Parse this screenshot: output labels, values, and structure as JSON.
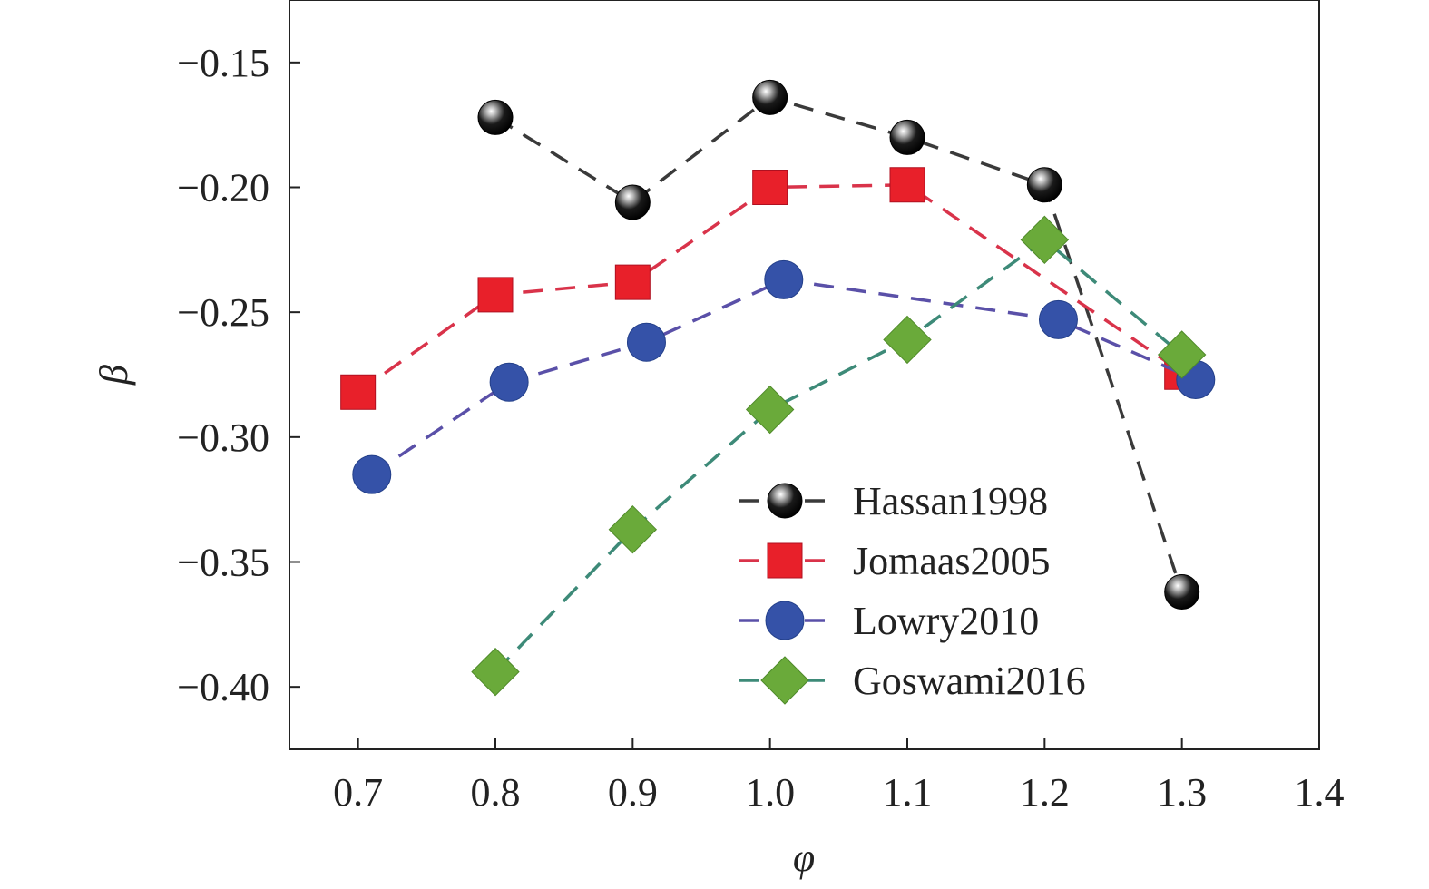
{
  "chart_data": {
    "type": "line",
    "xlabel": "φ",
    "ylabel": "β",
    "xlim": [
      0.65,
      1.4
    ],
    "ylim": [
      -0.425,
      -0.125
    ],
    "x_ticks": [
      {
        "value": 0.7,
        "label": "0.7"
      },
      {
        "value": 0.8,
        "label": "0.8"
      },
      {
        "value": 0.9,
        "label": "0.9"
      },
      {
        "value": 1.0,
        "label": "1.0"
      },
      {
        "value": 1.1,
        "label": "1.1"
      },
      {
        "value": 1.2,
        "label": "1.2"
      },
      {
        "value": 1.3,
        "label": "1.3"
      },
      {
        "value": 1.4,
        "label": "1.4"
      }
    ],
    "y_ticks": [
      {
        "value": -0.15,
        "label": "−0.15"
      },
      {
        "value": -0.2,
        "label": "−0.20"
      },
      {
        "value": -0.25,
        "label": "−0.25"
      },
      {
        "value": -0.3,
        "label": "−0.30"
      },
      {
        "value": -0.35,
        "label": "−0.35"
      },
      {
        "value": -0.4,
        "label": "−0.40"
      }
    ],
    "grid": false,
    "legend_position": "bottom-right",
    "series": [
      {
        "name": "Hassan1998",
        "marker": "sphere",
        "color": "#111111",
        "line_color": "#3a3a3a",
        "points": [
          [
            0.8,
            -0.172
          ],
          [
            0.9,
            -0.206
          ],
          [
            1.0,
            -0.164
          ],
          [
            1.1,
            -0.18
          ],
          [
            1.2,
            -0.199
          ],
          [
            1.3,
            -0.362
          ]
        ]
      },
      {
        "name": "Jomaas2005",
        "marker": "square",
        "color": "#e8202a",
        "line_color": "#d9334a",
        "points": [
          [
            0.7,
            -0.282
          ],
          [
            0.8,
            -0.243
          ],
          [
            0.9,
            -0.238
          ],
          [
            1.0,
            -0.2
          ],
          [
            1.1,
            -0.199
          ],
          [
            1.3,
            -0.274
          ]
        ]
      },
      {
        "name": "Lowry2010",
        "marker": "circle",
        "color": "#3552a8",
        "line_color": "#5a50a8",
        "points": [
          [
            0.71,
            -0.315
          ],
          [
            0.81,
            -0.278
          ],
          [
            0.91,
            -0.262
          ],
          [
            1.01,
            -0.237
          ],
          [
            1.21,
            -0.253
          ],
          [
            1.31,
            -0.277
          ]
        ]
      },
      {
        "name": "Goswami2016",
        "marker": "diamond",
        "color": "#6aaa3a",
        "line_color": "#3d8a78",
        "points": [
          [
            0.8,
            -0.394
          ],
          [
            0.9,
            -0.337
          ],
          [
            1.0,
            -0.289
          ],
          [
            1.1,
            -0.261
          ],
          [
            1.2,
            -0.221
          ],
          [
            1.3,
            -0.267
          ]
        ]
      }
    ]
  }
}
